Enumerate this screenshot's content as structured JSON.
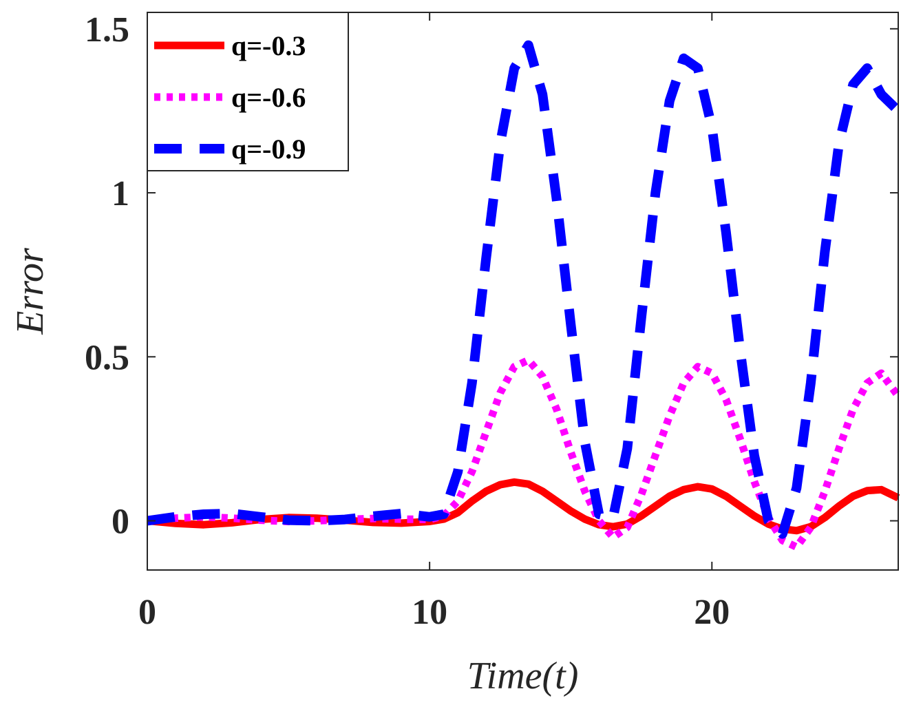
{
  "chart_data": {
    "type": "line",
    "title": "",
    "xlabel": "Time(t)",
    "ylabel": "Error",
    "xlim": [
      0,
      26.6
    ],
    "ylim": [
      -0.15,
      1.55
    ],
    "xticks": [
      0,
      10,
      20
    ],
    "xtick_labels": [
      "0",
      "10",
      "20"
    ],
    "yticks": [
      0,
      0.5,
      1,
      1.5
    ],
    "ytick_labels": [
      "0",
      "0.5",
      "1",
      "1.5"
    ],
    "grid": false,
    "legend_position": "top-left",
    "series": [
      {
        "name": "q=-0.3",
        "label": "q=-0.3",
        "color": "#ff0000",
        "style": "solid",
        "x": [
          0,
          1,
          2,
          3,
          4,
          5,
          6,
          7,
          8,
          9,
          10,
          10.5,
          11,
          11.5,
          12,
          12.5,
          13,
          13.5,
          14,
          14.5,
          15,
          15.5,
          16,
          16.5,
          17,
          17.5,
          18,
          18.5,
          19,
          19.5,
          20,
          20.5,
          21,
          21.5,
          22,
          22.5,
          23,
          23.5,
          24,
          24.5,
          25,
          25.5,
          26,
          26.6
        ],
        "y": [
          0,
          -0.008,
          -0.012,
          -0.006,
          0.004,
          0.01,
          0.008,
          0.002,
          -0.005,
          -0.007,
          -0.002,
          0.005,
          0.025,
          0.06,
          0.09,
          0.11,
          0.118,
          0.112,
          0.09,
          0.06,
          0.03,
          0.005,
          -0.012,
          -0.018,
          -0.01,
          0.015,
          0.045,
          0.075,
          0.095,
          0.104,
          0.097,
          0.075,
          0.045,
          0.015,
          -0.01,
          -0.025,
          -0.03,
          -0.018,
          0.01,
          0.045,
          0.075,
          0.092,
          0.095,
          0.07
        ]
      },
      {
        "name": "q=-0.6",
        "label": "q=-0.6",
        "color": "#ff00ff",
        "style": "dotted",
        "x": [
          0,
          1,
          2,
          3,
          4,
          5,
          6,
          7,
          8,
          9,
          10,
          10.5,
          11,
          11.5,
          12,
          12.5,
          13,
          13.5,
          14,
          14.5,
          15,
          15.5,
          16,
          16.5,
          17,
          17.5,
          18,
          18.5,
          19,
          19.5,
          20,
          20.5,
          21,
          21.5,
          22,
          22.5,
          23,
          23.5,
          24,
          24.5,
          25,
          25.5,
          26,
          26.6
        ],
        "y": [
          0,
          0.008,
          0.012,
          0.008,
          0.002,
          -0.002,
          0,
          0.004,
          0.007,
          0.005,
          0.004,
          0.015,
          0.06,
          0.15,
          0.27,
          0.39,
          0.47,
          0.49,
          0.44,
          0.34,
          0.21,
          0.09,
          0.0,
          -0.05,
          -0.02,
          0.08,
          0.2,
          0.32,
          0.42,
          0.47,
          0.45,
          0.37,
          0.25,
          0.12,
          0.01,
          -0.06,
          -0.08,
          -0.02,
          0.09,
          0.22,
          0.34,
          0.42,
          0.45,
          0.38
        ]
      },
      {
        "name": "q=-0.9",
        "label": "q=-0.9",
        "color": "#0000ff",
        "style": "dashed",
        "x": [
          0,
          1,
          2,
          3,
          4,
          5,
          6,
          7,
          8,
          9,
          10,
          10.5,
          11,
          11.5,
          12,
          12.5,
          13,
          13.5,
          14,
          14.5,
          15,
          15.5,
          16,
          16.5,
          17,
          17.5,
          18,
          18.5,
          19,
          19.5,
          20,
          20.5,
          21,
          21.5,
          22,
          22.5,
          23,
          23.5,
          24,
          24.5,
          25,
          25.5,
          26,
          26.6
        ],
        "y": [
          0,
          0.012,
          0.02,
          0.022,
          0.012,
          0.002,
          0,
          0.004,
          0.014,
          0.022,
          0.012,
          0.02,
          0.15,
          0.42,
          0.8,
          1.15,
          1.38,
          1.45,
          1.3,
          0.98,
          0.6,
          0.24,
          0.02,
          0.01,
          0.22,
          0.62,
          1.0,
          1.28,
          1.41,
          1.38,
          1.2,
          0.88,
          0.52,
          0.2,
          0.0,
          -0.04,
          0.1,
          0.42,
          0.82,
          1.15,
          1.33,
          1.38,
          1.3,
          1.25
        ]
      }
    ]
  }
}
